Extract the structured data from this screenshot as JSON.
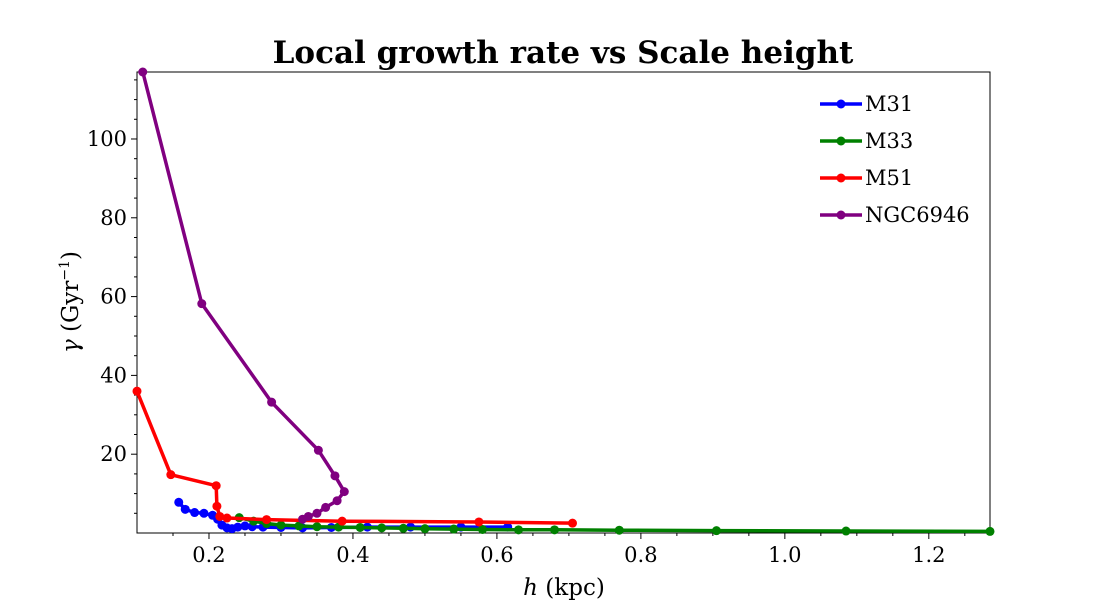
{
  "chart_data": {
    "type": "line",
    "title": "Local growth rate vs Scale height",
    "xlabel": {
      "var": "h",
      "rest": " (kpc)"
    },
    "ylabel": {
      "var": "γ",
      "pre": " (Gyr",
      "sup": "−1",
      "post": ")"
    },
    "xlim": [
      0.1,
      1.285
    ],
    "ylim": [
      0,
      117
    ],
    "xticks": [
      0.2,
      0.4,
      0.6,
      0.8,
      1.0,
      1.2
    ],
    "xtick_labels": [
      "0.2",
      "0.4",
      "0.6",
      "0.8",
      "1.0",
      "1.2"
    ],
    "yticks": [
      20,
      40,
      60,
      80,
      100
    ],
    "ytick_labels": [
      "20",
      "40",
      "60",
      "80",
      "100"
    ],
    "grid": false,
    "legend_position": "top-right",
    "series": [
      {
        "name": "M31",
        "color": "#0000ff",
        "x": [
          0.158,
          0.167,
          0.18,
          0.193,
          0.205,
          0.212,
          0.218,
          0.225,
          0.232,
          0.24,
          0.25,
          0.26,
          0.275,
          0.3,
          0.33,
          0.37,
          0.42,
          0.48,
          0.55,
          0.615
        ],
        "y": [
          7.8,
          6.0,
          5.2,
          5.0,
          4.5,
          3.5,
          2.0,
          1.3,
          1.1,
          1.5,
          1.8,
          1.6,
          1.5,
          1.4,
          1.3,
          1.4,
          1.5,
          1.5,
          1.5,
          1.5
        ]
      },
      {
        "name": "M33",
        "color": "#008000",
        "x": [
          0.242,
          0.262,
          0.28,
          0.3,
          0.325,
          0.35,
          0.38,
          0.41,
          0.44,
          0.47,
          0.5,
          0.54,
          0.58,
          0.63,
          0.68,
          0.77,
          0.905,
          1.085,
          1.285
        ],
        "y": [
          3.9,
          3.0,
          2.4,
          2.0,
          1.8,
          1.6,
          1.5,
          1.4,
          1.3,
          1.2,
          1.1,
          1.0,
          0.9,
          0.8,
          0.8,
          0.7,
          0.6,
          0.5,
          0.4
        ]
      },
      {
        "name": "M51",
        "color": "#ff0000",
        "x": [
          0.1,
          0.147,
          0.21,
          0.211,
          0.215,
          0.225,
          0.28,
          0.385,
          0.575,
          0.705
        ],
        "y": [
          36,
          14.8,
          12.0,
          6.8,
          4.2,
          3.8,
          3.4,
          3.0,
          2.8,
          2.5
        ]
      },
      {
        "name": "NGC6946",
        "color": "#800080",
        "x": [
          0.108,
          0.19,
          0.287,
          0.352,
          0.375,
          0.388,
          0.378,
          0.362,
          0.35,
          0.338,
          0.33
        ],
        "y": [
          117,
          58.2,
          33.2,
          21.0,
          14.5,
          10.5,
          8.2,
          6.5,
          5.0,
          4.2,
          3.5
        ]
      }
    ]
  }
}
